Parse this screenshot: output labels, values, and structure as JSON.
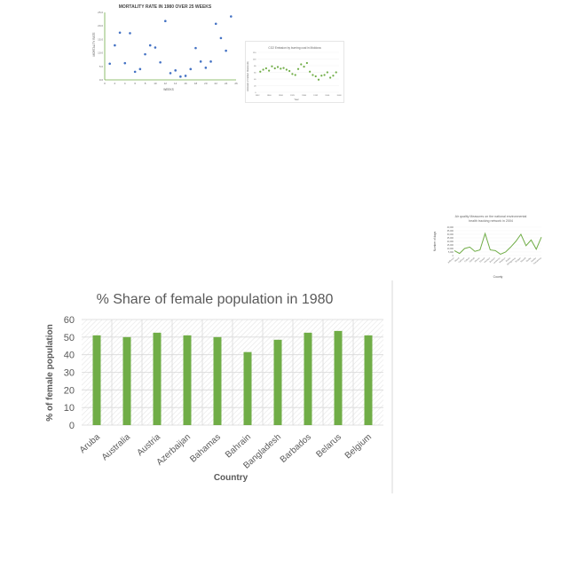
{
  "chart_data": [
    {
      "id": "mortality",
      "type": "scatter",
      "title": "MORTALITY RATE IN 1980 OVER 25 WEEKS",
      "xlabel": "WEEKS",
      "ylabel": "MORTALITY RATE",
      "xlim": [
        0,
        26
      ],
      "ylim": [
        0,
        25
      ],
      "xticks": [
        "0",
        "2",
        "4",
        "6",
        "8",
        "10",
        "12",
        "14",
        "16",
        "18",
        "20",
        "22",
        "24",
        "26"
      ],
      "yticks": [
        "0.0",
        "5.0",
        "10.0",
        "15.0",
        "20.0",
        "25.0"
      ],
      "color": "#4472c4",
      "x": [
        1,
        2,
        3,
        4,
        5,
        6,
        7,
        8,
        9,
        10,
        11,
        12,
        13,
        14,
        15,
        16,
        17,
        18,
        19,
        20,
        21,
        22,
        23,
        24,
        25
      ],
      "y": [
        6,
        12.8,
        17.5,
        6.2,
        17.3,
        3,
        4,
        9.5,
        12.8,
        12,
        6.5,
        21.8,
        2.5,
        3.5,
        1.2,
        1.5,
        4,
        11.8,
        6.8,
        4.5,
        6.8,
        20.8,
        15.5,
        10.8,
        23.5
      ]
    },
    {
      "id": "co2",
      "type": "scatter",
      "title": "CO2 Emission by burning coal in Moldova",
      "xlabel": "Year",
      "ylabel": "Emission of Carbon Dioxide (kt)",
      "xlim": [
        1952,
        2008
      ],
      "ylim": [
        0,
        120
      ],
      "xticks": [
        "1952",
        "1960",
        "1968",
        "1976",
        "1984",
        "1992",
        "2000",
        "2008"
      ],
      "yticks": [
        "0",
        "20",
        "40",
        "60",
        "80",
        "100",
        "120"
      ],
      "color": "#70ad47",
      "x": [
        1954,
        1956,
        1958,
        1960,
        1962,
        1964,
        1966,
        1968,
        1970,
        1972,
        1974,
        1976,
        1978,
        1980,
        1982,
        1984,
        1986,
        1988,
        1990,
        1992,
        1994,
        1996,
        1998,
        2000,
        2002,
        2004,
        2006
      ],
      "y": [
        62,
        68,
        72,
        65,
        78,
        72,
        76,
        71,
        73,
        68,
        64,
        55,
        52,
        70,
        84,
        77,
        88,
        62,
        52,
        48,
        38,
        50,
        52,
        60,
        44,
        50,
        60
      ]
    },
    {
      "id": "airquality",
      "type": "line",
      "title": "Air quality Measures on the national environmental health tracking network in 2004",
      "xlabel": "County",
      "ylabel": "Number of days",
      "ylim": [
        0,
        40000
      ],
      "yticks": [
        "0",
        "5,000",
        "10,000",
        "15,000",
        "20,000",
        "25,000",
        "30,000",
        "35,000",
        "40,000"
      ],
      "color": "#70ad47",
      "categories": [
        "Jefferson",
        "Blount",
        "Calhoun",
        "Colbert",
        "DeKalb",
        "Elmore",
        "Etowah",
        "Houston",
        "Jackson",
        "Lawrence",
        "Madison",
        "Mobile",
        "Montgomery",
        "Morgan",
        "Russell",
        "Shelby",
        "Sumter",
        "Tuscaloosa"
      ],
      "values": [
        7000,
        3000,
        10000,
        12000,
        6000,
        8000,
        31000,
        8000,
        7000,
        2000,
        5000,
        12000,
        20000,
        30000,
        14000,
        22000,
        9000,
        26000
      ]
    },
    {
      "id": "female",
      "type": "bar",
      "title": "% Share of female population in 1980",
      "xlabel": "Country",
      "ylabel": "% of female population",
      "ylim": [
        0,
        60
      ],
      "yticks": [
        "0",
        "10",
        "20",
        "30",
        "40",
        "50",
        "60"
      ],
      "color": "#70ad47",
      "categories": [
        "Aruba",
        "Australia",
        "Austria",
        "Azerbaijan",
        "Bahamas",
        "Bahrain",
        "Bangladesh",
        "Barbados",
        "Belarus",
        "Belgium"
      ],
      "values": [
        51,
        50,
        52.5,
        51,
        50,
        41.5,
        48.5,
        52.5,
        53.5,
        51
      ]
    }
  ]
}
